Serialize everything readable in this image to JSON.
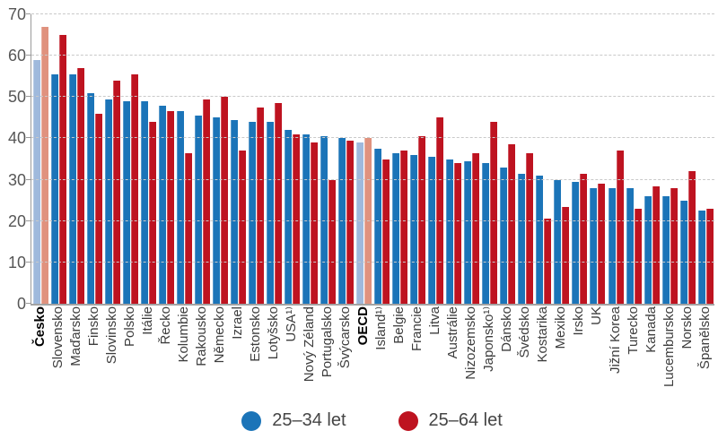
{
  "chart_data": {
    "type": "bar",
    "title": "",
    "xlabel": "",
    "ylabel": "",
    "ylim": [
      0,
      70
    ],
    "yticks": [
      0,
      10,
      20,
      30,
      40,
      50,
      60,
      70
    ],
    "grid": "horizontal-dashed",
    "legend_position": "bottom-center",
    "categories": [
      "Česko",
      "Slovensko",
      "Maďarsko",
      "Finsko",
      "Slovinsko",
      "Polsko",
      "Itálie",
      "Řecko",
      "Kolumbie",
      "Rakousko",
      "Německo",
      "Izrael",
      "Estonsko",
      "Lotyšsko",
      "USA¹⁾",
      "Nový Zéland",
      "Portugalsko",
      "Švýcarsko",
      "OECD",
      "Island¹⁾",
      "Belgie",
      "Francie",
      "Litva",
      "Austrálie",
      "Nizozemsko",
      "Japonsko¹⁾",
      "Dánsko",
      "Švédsko",
      "Kostarika",
      "Mexiko",
      "Irsko",
      "UK",
      "Jižní Korea",
      "Turecko",
      "Kanada",
      "Lucembursko",
      "Norsko",
      "Španělsko"
    ],
    "highlighted_categories": [
      "Česko",
      "OECD"
    ],
    "series": [
      {
        "name": "25–34 let",
        "color": "#1B74B8",
        "highlight_color": "#9FB9DC",
        "values": [
          59,
          55.5,
          55.5,
          51,
          49.5,
          49,
          49,
          48,
          46.5,
          45.5,
          45,
          44.5,
          44,
          44,
          42,
          41,
          40.5,
          40,
          39,
          37.5,
          36.5,
          36,
          35.5,
          35,
          34.5,
          34,
          33,
          31.5,
          31,
          30,
          29.5,
          28,
          28,
          28,
          26,
          26,
          25,
          22.5
        ]
      },
      {
        "name": "25–64 let",
        "color": "#BE1320",
        "highlight_color": "#E0927E",
        "values": [
          67,
          65,
          57,
          46,
          54,
          55.5,
          44,
          46.5,
          36.5,
          49.5,
          50,
          37,
          47.5,
          48.5,
          41,
          39,
          30,
          39.5,
          40,
          35,
          37,
          40.5,
          45,
          34,
          36.5,
          44,
          38.5,
          36.5,
          20.5,
          23.5,
          31.5,
          29,
          37,
          23,
          28.5,
          28,
          32,
          23
        ]
      }
    ]
  }
}
